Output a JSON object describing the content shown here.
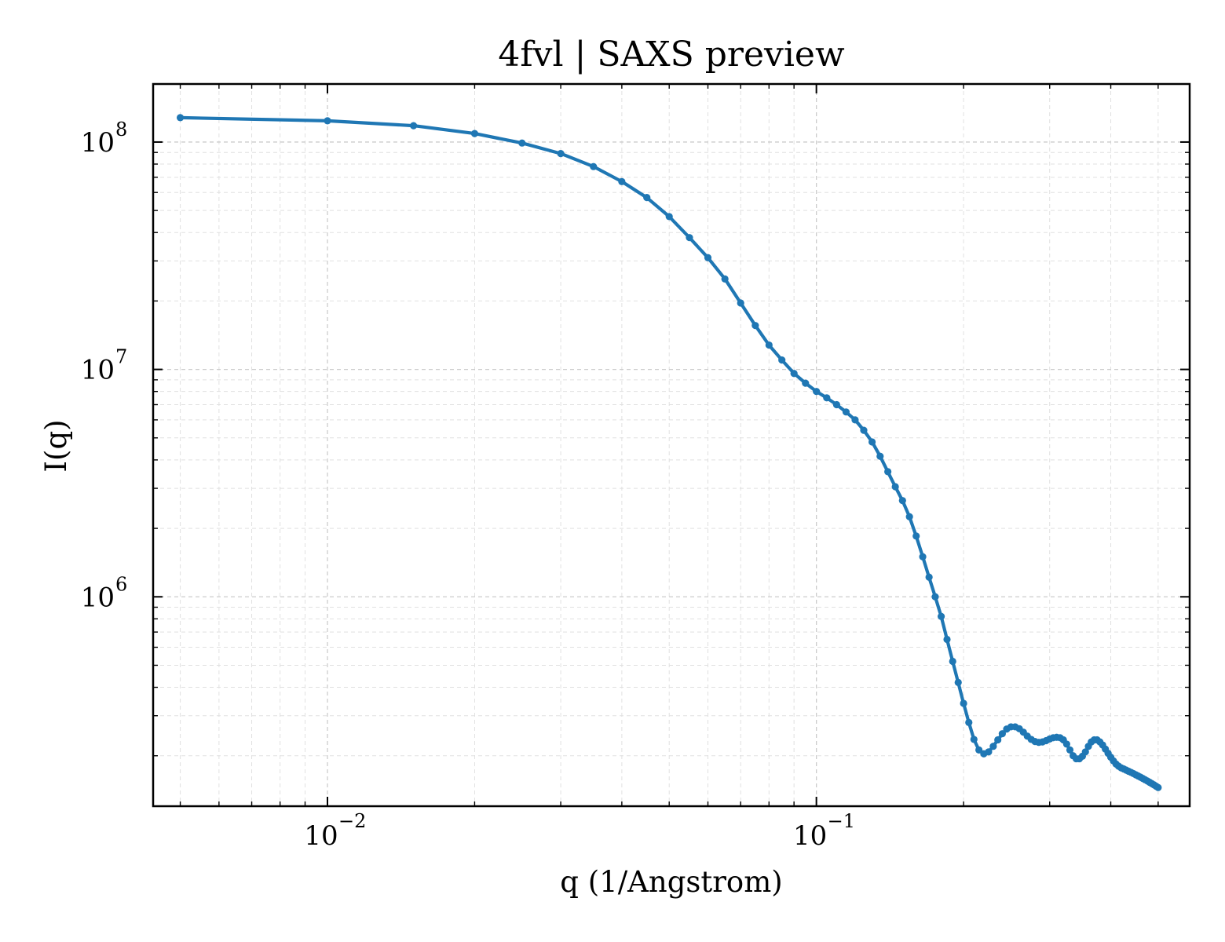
{
  "chart_data": {
    "type": "line",
    "title": "4fvl | SAXS preview",
    "xlabel": "q (1/Angstrom)",
    "ylabel": "I(q)",
    "xscale": "log",
    "yscale": "log",
    "xlim": [
      0.0044,
      0.58
    ],
    "ylim": [
      120000,
      180000000
    ],
    "grid": true,
    "legend": "none",
    "x_ticks": [
      {
        "value": 0.01,
        "base": "10",
        "exp": "−2"
      },
      {
        "value": 0.1,
        "base": "10",
        "exp": "−1"
      }
    ],
    "y_ticks": [
      {
        "value": 1000000,
        "base": "10",
        "exp": "6"
      },
      {
        "value": 10000000,
        "base": "10",
        "exp": "7"
      },
      {
        "value": 100000000,
        "base": "10",
        "exp": "8"
      }
    ],
    "series": [
      {
        "color": "#1f77b4",
        "marker": "dot",
        "x": [
          0.005,
          0.01,
          0.015,
          0.02,
          0.025,
          0.03,
          0.035,
          0.04,
          0.045,
          0.05,
          0.055,
          0.06,
          0.065,
          0.07,
          0.075,
          0.08,
          0.085,
          0.09,
          0.095,
          0.1,
          0.105,
          0.11,
          0.115,
          0.12,
          0.125,
          0.13,
          0.135,
          0.14,
          0.145,
          0.15,
          0.155,
          0.16,
          0.165,
          0.17,
          0.175,
          0.18,
          0.185,
          0.19,
          0.195,
          0.2,
          0.205,
          0.21,
          0.215,
          0.22,
          0.225,
          0.23,
          0.235,
          0.24,
          0.245,
          0.25,
          0.255,
          0.26,
          0.265,
          0.27,
          0.275,
          0.28,
          0.285,
          0.29,
          0.295,
          0.3,
          0.305,
          0.31,
          0.315,
          0.32,
          0.325,
          0.33,
          0.335,
          0.34,
          0.345,
          0.35,
          0.355,
          0.36,
          0.365,
          0.37,
          0.375,
          0.38,
          0.385,
          0.39,
          0.395,
          0.4,
          0.405,
          0.41,
          0.415,
          0.42,
          0.425,
          0.43,
          0.435,
          0.44,
          0.445,
          0.45,
          0.455,
          0.46,
          0.465,
          0.47,
          0.475,
          0.48,
          0.485,
          0.49,
          0.495,
          0.5
        ],
        "y": [
          128000000,
          124000000,
          118000000,
          109000000,
          99000000,
          89000000,
          78000000,
          67000000,
          57000000,
          47000000,
          38000000,
          31000000,
          25000000,
          19600000,
          15600000,
          12800000,
          11000000,
          9600000,
          8700000,
          8000000,
          7500000,
          7000000,
          6500000,
          6000000,
          5400000,
          4800000,
          4150000,
          3550000,
          3050000,
          2650000,
          2250000,
          1850000,
          1500000,
          1220000,
          1000000,
          820000,
          650000,
          520000,
          420000,
          340000,
          280000,
          236000,
          212000,
          204000,
          208000,
          220000,
          235000,
          250000,
          262000,
          268000,
          268000,
          263000,
          254000,
          244000,
          236000,
          231000,
          229000,
          230000,
          233000,
          237000,
          240000,
          241000,
          240000,
          235000,
          225000,
          212000,
          200000,
          194000,
          194000,
          199000,
          208000,
          220000,
          230000,
          235000,
          235000,
          230000,
          223000,
          214000,
          205000,
          197000,
          190000,
          184000,
          180000,
          177000,
          175000,
          173000,
          171000,
          169000,
          167000,
          165000,
          163000,
          161000,
          159000,
          157000,
          155000,
          153000,
          151000,
          149000,
          147000,
          145000
        ]
      }
    ]
  }
}
